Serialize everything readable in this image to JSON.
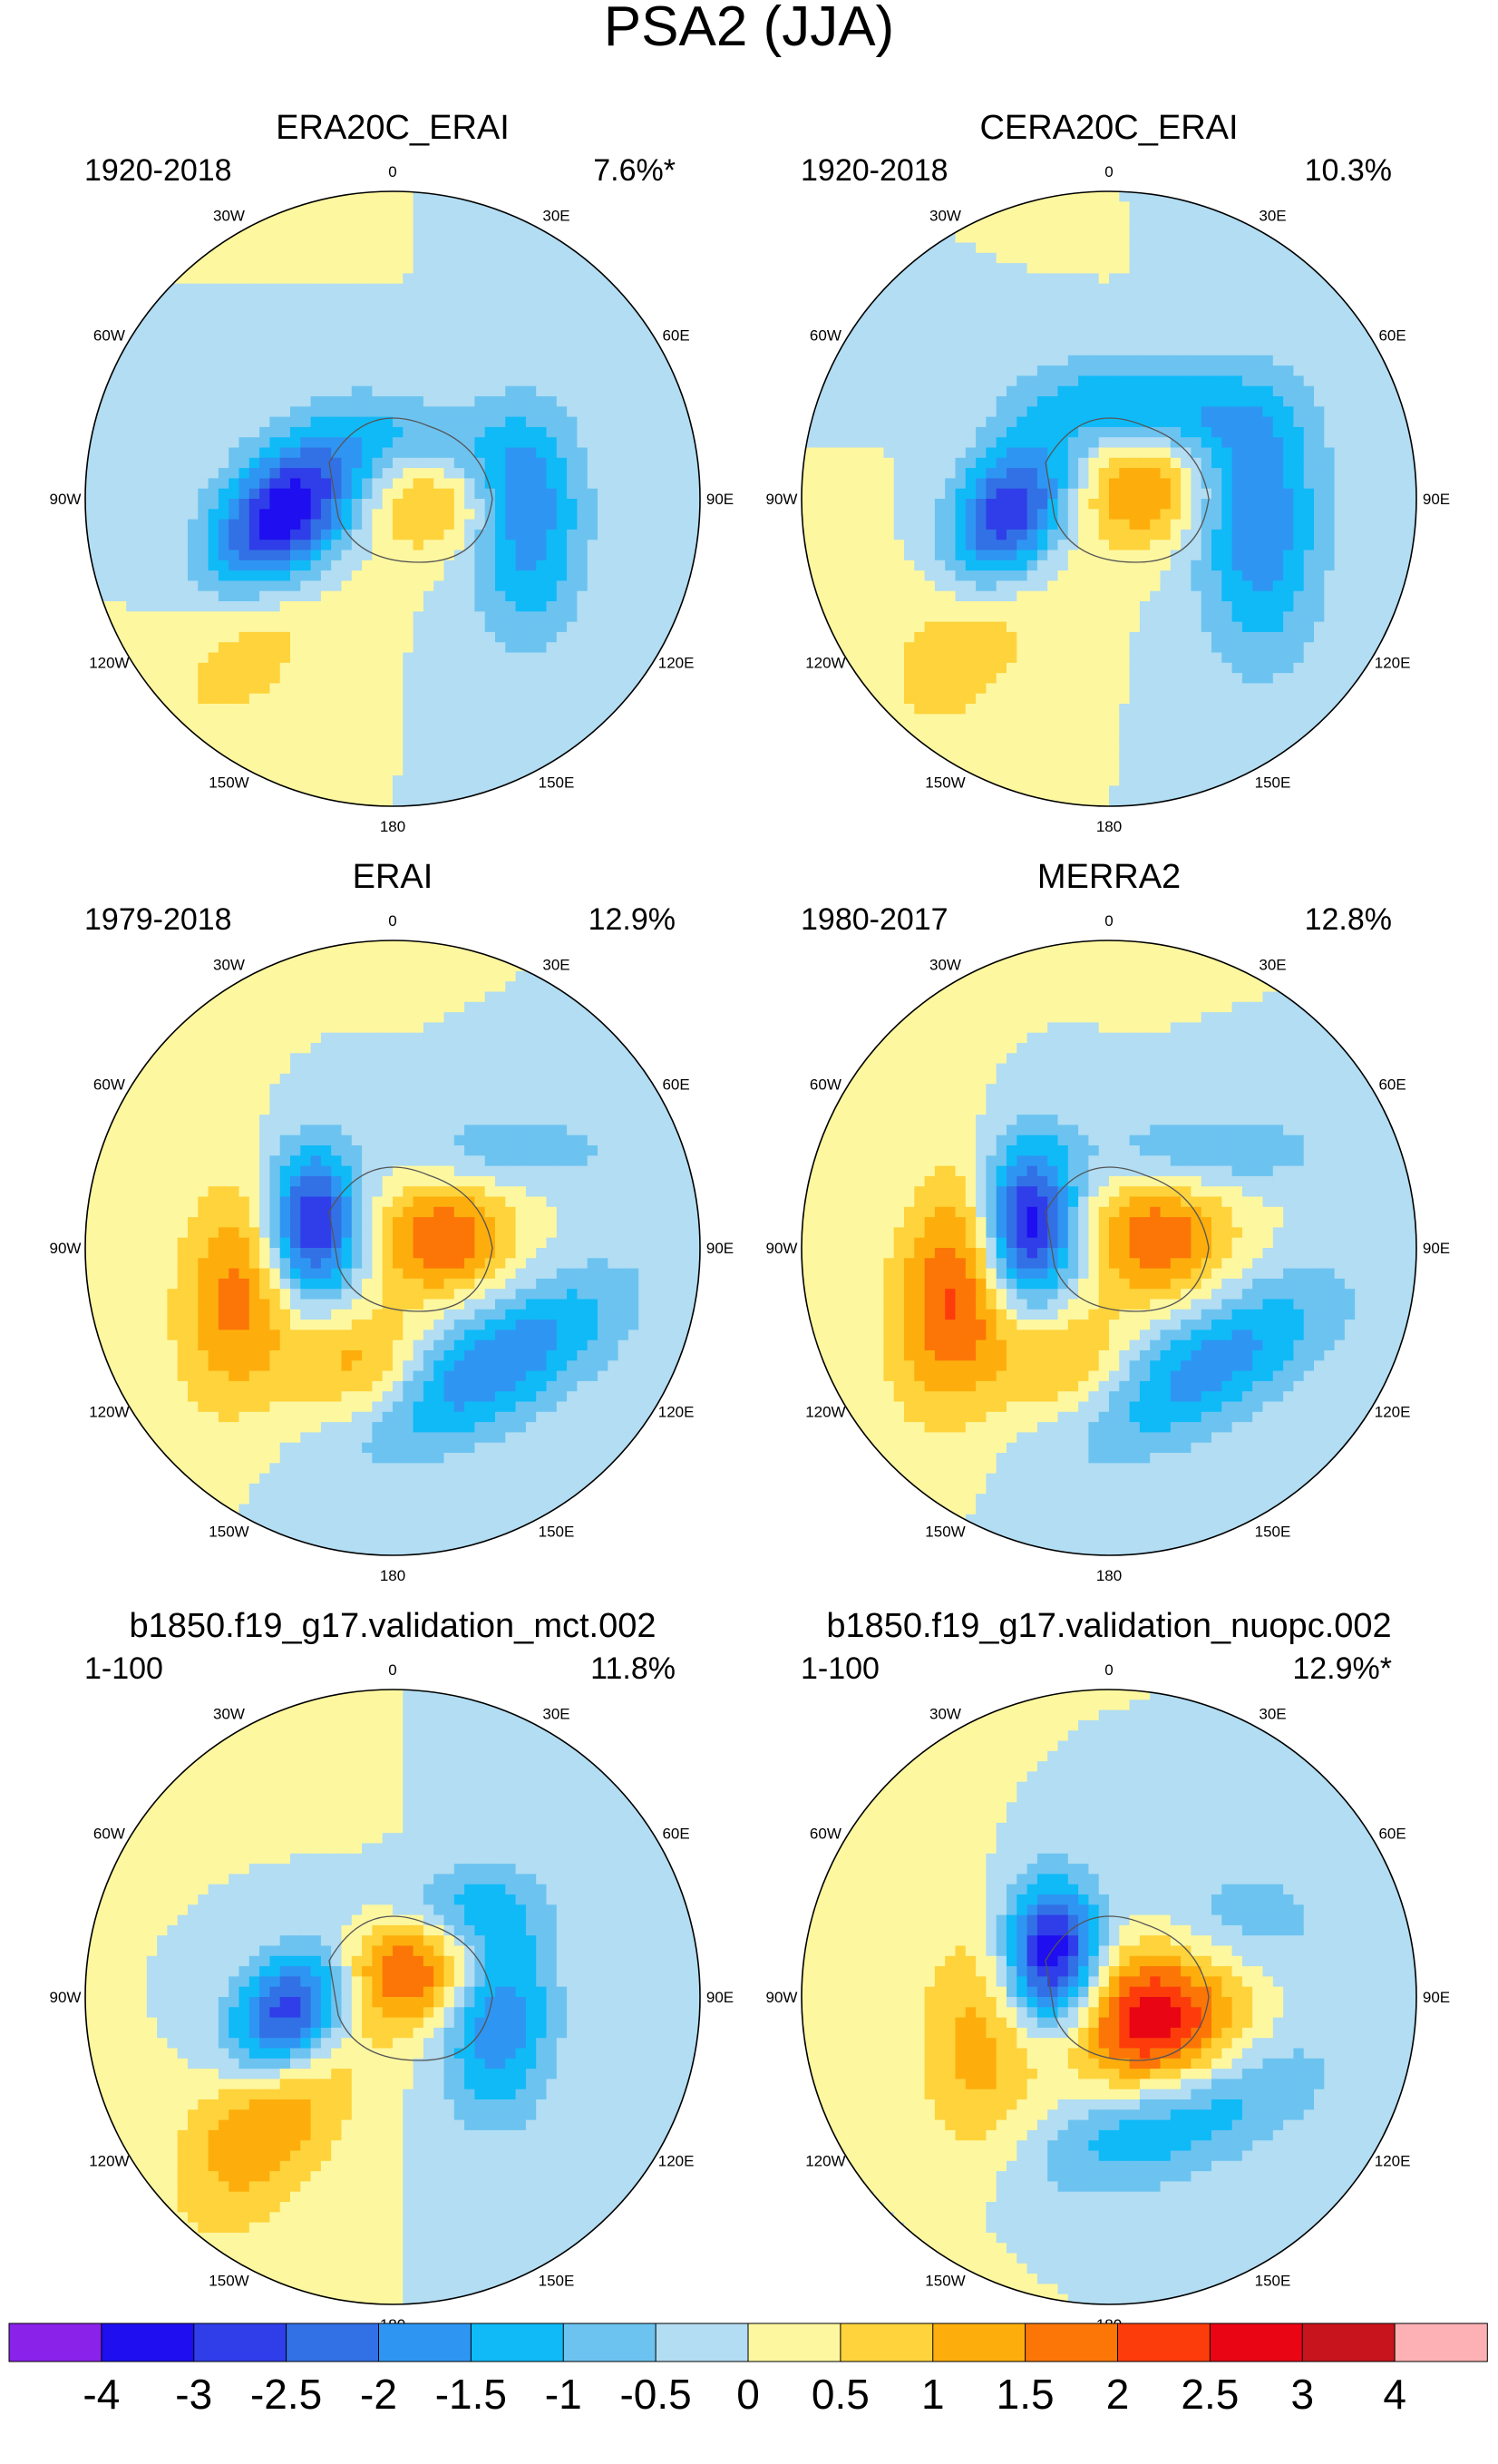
{
  "figure": {
    "title": "PSA2 (JJA)"
  },
  "chart_data": [
    {
      "type": "heatmap",
      "title": "ERA20C_ERAI",
      "period": "1920-2018",
      "variance_explained": "7.6%*",
      "features": [
        {
          "lon": -100,
          "lat": -58,
          "value": -4.0,
          "rx": 12,
          "ry": 19,
          "rot": 40
        },
        {
          "lon": 35,
          "lat": -72,
          "value": -1.5,
          "rx": 18,
          "ry": 10,
          "rot": 10
        },
        {
          "lon": 100,
          "lat": -50,
          "value": -1.8,
          "rx": 12,
          "ry": 24,
          "rot": 0
        },
        {
          "lon": 75,
          "lat": -78,
          "value": 1.6,
          "rx": 13,
          "ry": 12,
          "rot": 0
        },
        {
          "lon": -130,
          "lat": -40,
          "value": 1.0,
          "rx": 14,
          "ry": 28,
          "rot": 30
        }
      ]
    },
    {
      "type": "heatmap",
      "title": "CERA20C_ERAI",
      "period": "1920-2018",
      "variance_explained": "10.3%",
      "features": [
        {
          "lon": -100,
          "lat": -60,
          "value": -3.5,
          "rx": 11,
          "ry": 17,
          "rot": 30
        },
        {
          "lon": 20,
          "lat": -62,
          "value": -1.6,
          "rx": 24,
          "ry": 10,
          "rot": 5
        },
        {
          "lon": 100,
          "lat": -45,
          "value": -1.9,
          "rx": 13,
          "ry": 28,
          "rot": 0
        },
        {
          "lon": 70,
          "lat": -80,
          "value": 1.6,
          "rx": 12,
          "ry": 12,
          "rot": 0
        },
        {
          "lon": -130,
          "lat": -40,
          "value": 1.0,
          "rx": 15,
          "ry": 30,
          "rot": 30
        }
      ]
    },
    {
      "type": "heatmap",
      "title": "ERAI",
      "period": "1979-2018",
      "variance_explained": "12.9%",
      "features": [
        {
          "lon": -75,
          "lat": -65,
          "value": -3.5,
          "rx": 10,
          "ry": 16,
          "rot": 0
        },
        {
          "lon": 140,
          "lat": -45,
          "value": -2.0,
          "rx": 30,
          "ry": 12,
          "rot": -30
        },
        {
          "lon": 50,
          "lat": -45,
          "value": -0.8,
          "rx": 25,
          "ry": 8,
          "rot": 0
        },
        {
          "lon": 80,
          "lat": -75,
          "value": 2.0,
          "rx": 14,
          "ry": 12,
          "rot": 0
        },
        {
          "lon": -105,
          "lat": -45,
          "value": 1.8,
          "rx": 13,
          "ry": 24,
          "rot": 10
        },
        {
          "lon": -165,
          "lat": -55,
          "value": 1.3,
          "rx": 14,
          "ry": 12,
          "rot": 0
        }
      ]
    },
    {
      "type": "heatmap",
      "title": "MERRA2",
      "period": "1980-2017",
      "variance_explained": "12.8%",
      "features": [
        {
          "lon": -75,
          "lat": -65,
          "value": -3.8,
          "rx": 10,
          "ry": 17,
          "rot": 0
        },
        {
          "lon": 140,
          "lat": -45,
          "value": -1.8,
          "rx": 30,
          "ry": 12,
          "rot": -30
        },
        {
          "lon": 45,
          "lat": -50,
          "value": -1.0,
          "rx": 25,
          "ry": 8,
          "rot": 0
        },
        {
          "lon": 80,
          "lat": -75,
          "value": 1.9,
          "rx": 15,
          "ry": 13,
          "rot": 0
        },
        {
          "lon": -105,
          "lat": -45,
          "value": 2.2,
          "rx": 13,
          "ry": 25,
          "rot": 10
        },
        {
          "lon": -160,
          "lat": -55,
          "value": 1.2,
          "rx": 14,
          "ry": 12,
          "rot": 0
        }
      ]
    },
    {
      "type": "heatmap",
      "title": "b1850.f19_g17.validation_mct.002",
      "period": "1-100",
      "variance_explained": "11.8%",
      "features": [
        {
          "lon": -100,
          "lat": -60,
          "value": -3.8,
          "rx": 11,
          "ry": 16,
          "rot": 40
        },
        {
          "lon": 95,
          "lat": -60,
          "value": -2.2,
          "rx": 12,
          "ry": 22,
          "rot": 0
        },
        {
          "lon": 30,
          "lat": -60,
          "value": -0.9,
          "rx": 18,
          "ry": 8,
          "rot": 0
        },
        {
          "lon": 40,
          "lat": -80,
          "value": 2.2,
          "rx": 16,
          "ry": 12,
          "rot": 0
        },
        {
          "lon": -130,
          "lat": -45,
          "value": 1.8,
          "rx": 14,
          "ry": 28,
          "rot": 30
        }
      ]
    },
    {
      "type": "heatmap",
      "title": "b1850.f19_g17.validation_nuopc.002",
      "period": "1-100",
      "variance_explained": "12.9%*",
      "features": [
        {
          "lon": -55,
          "lat": -70,
          "value": -3.8,
          "rx": 10,
          "ry": 15,
          "rot": 0
        },
        {
          "lon": 150,
          "lat": -50,
          "value": -1.7,
          "rx": 30,
          "ry": 12,
          "rot": -20
        },
        {
          "lon": 60,
          "lat": -45,
          "value": -0.8,
          "rx": 20,
          "ry": 12,
          "rot": 0
        },
        {
          "lon": 120,
          "lat": -75,
          "value": 2.9,
          "rx": 18,
          "ry": 16,
          "rot": 0
        },
        {
          "lon": -110,
          "lat": -50,
          "value": 1.2,
          "rx": 13,
          "ry": 25,
          "rot": 0
        }
      ]
    }
  ],
  "colorbar": {
    "levels": [
      "-4",
      "-3",
      "-2.5",
      "-2",
      "-1.5",
      "-1",
      "-0.5",
      "0",
      "0.5",
      "1",
      "1.5",
      "2",
      "2.5",
      "3",
      "4"
    ],
    "level_values": [
      -4,
      -3,
      -2.5,
      -2,
      -1.5,
      -1,
      -0.5,
      0,
      0.5,
      1,
      1.5,
      2,
      2.5,
      3,
      4
    ],
    "colors": [
      "#8a22ea",
      "#1e0ef0",
      "#2f3ee8",
      "#3270e6",
      "#2e96f2",
      "#0fbaf7",
      "#6cc3f0",
      "#b2ddf2",
      "#fdf7a0",
      "#fed33b",
      "#fdae0c",
      "#fc7607",
      "#fd3c0b",
      "#e90513",
      "#c8141c",
      "#feb1b4"
    ]
  },
  "map_labels": {
    "lon_labels": [
      "0",
      "30E",
      "60E",
      "90E",
      "120E",
      "150E",
      "180",
      "150W",
      "120W",
      "90W",
      "60W",
      "30W"
    ],
    "lon_values": [
      0,
      30,
      60,
      90,
      120,
      150,
      180,
      -150,
      -120,
      -90,
      -60,
      -30
    ]
  }
}
